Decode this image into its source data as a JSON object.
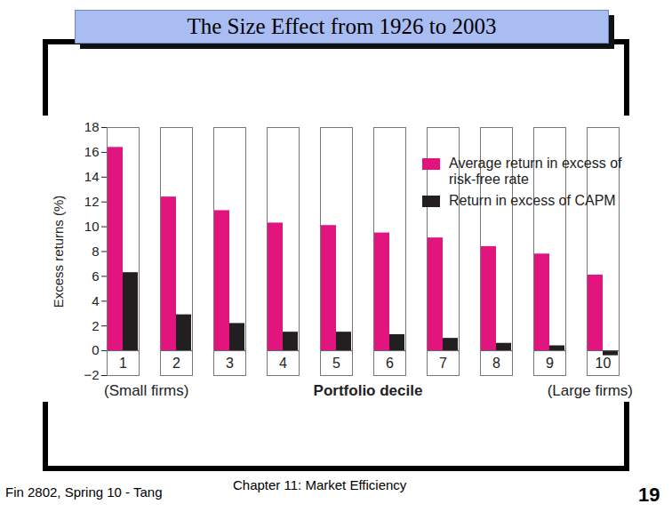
{
  "slide": {
    "title": "The Size Effect from 1926 to 2003",
    "footer": "Fin 2802, Spring 10 - Tang",
    "chapter": "Chapter 11: Market Efficiency",
    "page": 19
  },
  "chart_data": {
    "type": "bar",
    "categories": [
      "1",
      "2",
      "3",
      "4",
      "5",
      "6",
      "7",
      "8",
      "9",
      "10"
    ],
    "x_label": "Portfolio decile",
    "y_label": "Excess returns (%)",
    "annotations": [
      "(Small firms)",
      "(Large firms)"
    ],
    "series": [
      {
        "name": "Average return in excess of risk-free rate",
        "color": "#e2157f",
        "values": [
          16.4,
          12.4,
          11.3,
          10.3,
          10.1,
          9.5,
          9.1,
          8.4,
          7.8,
          6.1
        ]
      },
      {
        "name": "Return in excess of CAPM",
        "color": "#231f20",
        "values": [
          6.3,
          2.9,
          2.2,
          1.5,
          1.5,
          1.3,
          1.0,
          0.6,
          0.4,
          -0.4
        ]
      }
    ],
    "ylim": [
      -2,
      18
    ],
    "yticks": [
      -2,
      0,
      2,
      4,
      6,
      8,
      10,
      12,
      14,
      16,
      18
    ],
    "legend": "top-right",
    "grid": false
  }
}
